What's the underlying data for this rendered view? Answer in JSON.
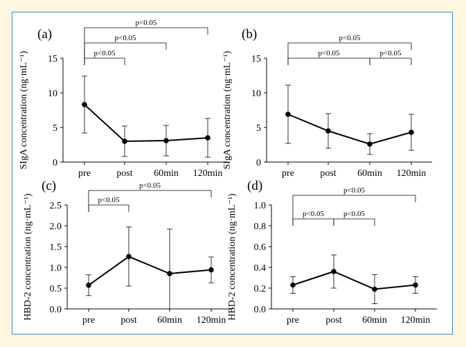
{
  "page": {
    "background": "#fdf6e1",
    "frame_border": "#4a80b4",
    "panel_bg": "#ffffff"
  },
  "chart_data": [
    {
      "id": "a",
      "type": "line",
      "panel_label": "(a)",
      "ylabel": "SIgA concentration  (ng·mL⁻¹)",
      "categories": [
        "pre",
        "post",
        "60min",
        "120min"
      ],
      "ylim": [
        0,
        15
      ],
      "yticks": [
        "0",
        "5",
        "10",
        "15"
      ],
      "series": [
        {
          "values": [
            8.3,
            3.0,
            3.1,
            3.5
          ],
          "error": [
            4.1,
            2.2,
            2.2,
            2.8
          ]
        }
      ],
      "significance": [
        {
          "from": 0,
          "to": 1,
          "label": "p<0.05",
          "level": 0
        },
        {
          "from": 0,
          "to": 2,
          "label": "p<0.05",
          "level": 1
        },
        {
          "from": 0,
          "to": 3,
          "label": "p<0.05",
          "level": 2
        }
      ]
    },
    {
      "id": "b",
      "type": "line",
      "panel_label": "(b)",
      "ylabel": "SIgA concentration  (ng·mL⁻¹)",
      "categories": [
        "pre",
        "post",
        "60min",
        "120min"
      ],
      "ylim": [
        0,
        15
      ],
      "yticks": [
        "0",
        "5",
        "10",
        "15"
      ],
      "series": [
        {
          "values": [
            6.9,
            4.5,
            2.6,
            4.3
          ],
          "error": [
            4.2,
            2.5,
            1.5,
            2.6
          ]
        }
      ],
      "significance": [
        {
          "from": 0,
          "to": 2,
          "label": "p<0.05",
          "level": 0
        },
        {
          "from": 2,
          "to": 3,
          "label": "p<0.05",
          "level": 0
        },
        {
          "from": 0,
          "to": 3,
          "label": "p<0.05",
          "level": 1
        }
      ]
    },
    {
      "id": "c",
      "type": "line",
      "panel_label": "(c)",
      "ylabel": "HBD-2 concentration  (ng·mL⁻¹)",
      "categories": [
        "pre",
        "post",
        "60min",
        "120min"
      ],
      "ylim": [
        0,
        2.5
      ],
      "yticks": [
        "0.0",
        "0.5",
        "1.0",
        "1.5",
        "2.0",
        "2.5"
      ],
      "series": [
        {
          "values": [
            0.57,
            1.26,
            0.85,
            0.94
          ],
          "error": [
            0.25,
            0.71,
            1.07,
            0.31
          ]
        }
      ],
      "significance": [
        {
          "from": 0,
          "to": 1,
          "label": "p<0.05",
          "level": 0
        },
        {
          "from": 0,
          "to": 3,
          "label": "p<0.05",
          "level": 1
        }
      ]
    },
    {
      "id": "d",
      "type": "line",
      "panel_label": "(d)",
      "ylabel": "HBD-2 concentration  (ng·mL⁻¹)",
      "categories": [
        "pre",
        "post",
        "60min",
        "120min"
      ],
      "ylim": [
        0,
        1.0
      ],
      "yticks": [
        "0.0",
        "0.2",
        "0.4",
        "0.6",
        "0.8",
        "1.0"
      ],
      "series": [
        {
          "values": [
            0.23,
            0.36,
            0.19,
            0.23
          ],
          "error": [
            0.08,
            0.16,
            0.14,
            0.08
          ]
        }
      ],
      "significance": [
        {
          "from": 0,
          "to": 1,
          "label": "p<0.05",
          "level": 0
        },
        {
          "from": 1,
          "to": 2,
          "label": "p<0.05",
          "level": 0
        },
        {
          "from": 0,
          "to": 3,
          "label": "p<0.05",
          "level": 1
        }
      ]
    }
  ]
}
